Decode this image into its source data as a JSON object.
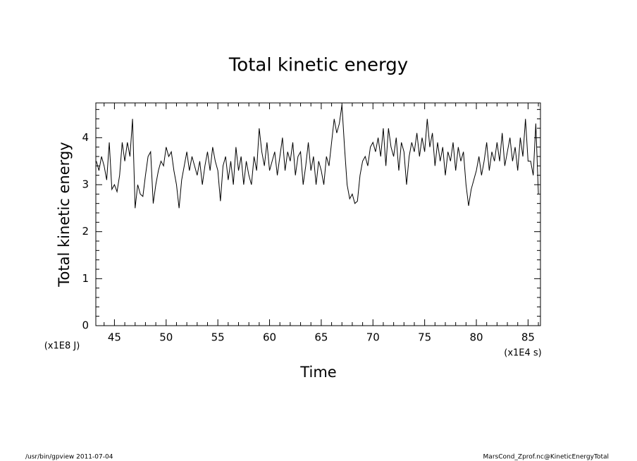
{
  "chart_data": {
    "type": "line",
    "title": "Total kinetic energy",
    "ylabel": "Total kinetic energy",
    "xlabel": "Time",
    "yunit": "(x1E8 J)",
    "xunit": "(x1E4 s)",
    "footer_left": "/usr/bin/gpview   2011-07-04",
    "footer_right": "MarsCond_Zprof.nc@KineticEnergyTotal",
    "color": "#000000",
    "xlim": [
      43.2,
      86.2
    ],
    "ylim": [
      0,
      4.74
    ],
    "xticks": [
      45,
      50,
      55,
      60,
      65,
      70,
      75,
      80,
      85
    ],
    "yticks": [
      0,
      1,
      2,
      3,
      4
    ],
    "xminorticks": [
      44,
      46,
      47,
      48,
      49,
      51,
      52,
      53,
      54,
      56,
      57,
      58,
      59,
      61,
      62,
      63,
      64,
      66,
      67,
      68,
      69,
      71,
      72,
      73,
      74,
      76,
      77,
      78,
      79,
      81,
      82,
      83,
      84,
      86
    ],
    "yminorticks": [
      0.2,
      0.4,
      0.6,
      0.8,
      1.2,
      1.4,
      1.6,
      1.8,
      2.2,
      2.4,
      2.6,
      2.8,
      3.2,
      3.4,
      3.6,
      3.8,
      4.2,
      4.4,
      4.6
    ],
    "x": [
      43.25,
      43.5,
      43.75,
      44,
      44.25,
      44.5,
      44.75,
      45,
      45.25,
      45.5,
      45.75,
      46,
      46.25,
      46.5,
      46.75,
      47,
      47.25,
      47.5,
      47.75,
      48,
      48.25,
      48.5,
      48.75,
      49,
      49.25,
      49.5,
      49.75,
      50,
      50.25,
      50.5,
      50.75,
      51,
      51.25,
      51.5,
      51.75,
      52,
      52.25,
      52.5,
      52.75,
      53,
      53.25,
      53.5,
      53.75,
      54,
      54.25,
      54.5,
      54.75,
      55,
      55.25,
      55.5,
      55.75,
      56,
      56.25,
      56.5,
      56.75,
      57,
      57.25,
      57.5,
      57.75,
      58,
      58.25,
      58.5,
      58.75,
      59,
      59.25,
      59.5,
      59.75,
      60,
      60.25,
      60.5,
      60.75,
      61,
      61.25,
      61.5,
      61.75,
      62,
      62.25,
      62.5,
      62.75,
      63,
      63.25,
      63.5,
      63.75,
      64,
      64.25,
      64.5,
      64.75,
      65,
      65.25,
      65.5,
      65.75,
      66,
      66.25,
      66.5,
      66.75,
      67,
      67.25,
      67.5,
      67.75,
      68,
      68.25,
      68.5,
      68.75,
      69,
      69.25,
      69.5,
      69.75,
      70,
      70.25,
      70.5,
      70.75,
      71,
      71.25,
      71.5,
      71.75,
      72,
      72.25,
      72.5,
      72.75,
      73,
      73.25,
      73.5,
      73.75,
      74,
      74.25,
      74.5,
      74.75,
      75,
      75.25,
      75.5,
      75.75,
      76,
      76.25,
      76.5,
      76.75,
      77,
      77.25,
      77.5,
      77.75,
      78,
      78.25,
      78.5,
      78.75,
      79,
      79.25,
      79.5,
      79.75,
      80,
      80.25,
      80.5,
      80.75,
      81,
      81.25,
      81.5,
      81.75,
      82,
      82.25,
      82.5,
      82.75,
      83,
      83.25,
      83.5,
      83.75,
      84,
      84.25,
      84.5,
      84.75,
      85,
      85.25,
      85.5,
      85.75,
      86
    ],
    "values": [
      3.5,
      3.3,
      3.6,
      3.4,
      3.1,
      3.9,
      2.9,
      3.0,
      2.85,
      3.2,
      3.9,
      3.5,
      3.9,
      3.6,
      4.4,
      2.5,
      3.0,
      2.8,
      2.75,
      3.2,
      3.6,
      3.7,
      2.6,
      3.0,
      3.3,
      3.5,
      3.4,
      3.8,
      3.6,
      3.7,
      3.3,
      3.0,
      2.5,
      3.1,
      3.4,
      3.7,
      3.3,
      3.6,
      3.4,
      3.2,
      3.5,
      3.0,
      3.4,
      3.7,
      3.3,
      3.8,
      3.5,
      3.3,
      2.65,
      3.4,
      3.6,
      3.1,
      3.5,
      3.0,
      3.8,
      3.3,
      3.6,
      3.0,
      3.5,
      3.2,
      3.0,
      3.6,
      3.3,
      4.2,
      3.7,
      3.4,
      3.9,
      3.3,
      3.5,
      3.7,
      3.2,
      3.6,
      4.0,
      3.3,
      3.7,
      3.5,
      3.9,
      3.2,
      3.6,
      3.7,
      3.0,
      3.4,
      3.9,
      3.3,
      3.6,
      3.0,
      3.5,
      3.3,
      3.0,
      3.6,
      3.4,
      3.9,
      4.4,
      4.1,
      4.3,
      4.7,
      3.8,
      3.0,
      2.7,
      2.8,
      2.6,
      2.65,
      3.2,
      3.5,
      3.6,
      3.4,
      3.8,
      3.9,
      3.7,
      4.0,
      3.6,
      4.2,
      3.4,
      4.2,
      3.8,
      3.6,
      4.0,
      3.3,
      3.9,
      3.7,
      3.0,
      3.6,
      3.9,
      3.7,
      4.1,
      3.6,
      4.0,
      3.7,
      4.4,
      3.8,
      4.1,
      3.4,
      3.9,
      3.5,
      3.8,
      3.2,
      3.7,
      3.5,
      3.9,
      3.3,
      3.8,
      3.5,
      3.7,
      3.0,
      2.55,
      2.9,
      3.1,
      3.3,
      3.6,
      3.2,
      3.5,
      3.9,
      3.3,
      3.7,
      3.5,
      3.9,
      3.5,
      4.1,
      3.4,
      3.7,
      4.0,
      3.5,
      3.8,
      3.3,
      4.0,
      3.6,
      4.4,
      3.5,
      3.5,
      3.2,
      4.3,
      2.8
    ]
  }
}
